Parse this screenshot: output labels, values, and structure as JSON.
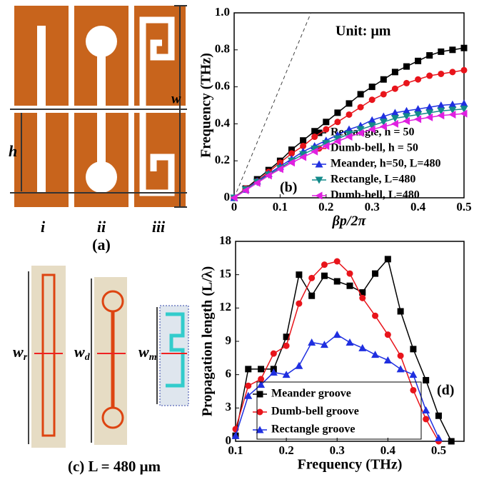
{
  "chart_data": [
    {
      "type": "line",
      "x_label": "βp/2π",
      "y_label": "Frequency (THz)",
      "annotations": [
        "Unit: μm",
        "(b)"
      ],
      "x": [
        0,
        0.025,
        0.05,
        0.075,
        0.1,
        0.125,
        0.15,
        0.175,
        0.2,
        0.225,
        0.25,
        0.275,
        0.3,
        0.325,
        0.35,
        0.375,
        0.4,
        0.425,
        0.45,
        0.475,
        0.5
      ],
      "series": [
        {
          "name": "Rectangle, h = 50",
          "color": "#000000",
          "marker": "square",
          "values": [
            0,
            0.05,
            0.1,
            0.15,
            0.2,
            0.26,
            0.31,
            0.36,
            0.41,
            0.46,
            0.51,
            0.56,
            0.6,
            0.64,
            0.68,
            0.71,
            0.74,
            0.77,
            0.79,
            0.8,
            0.81
          ]
        },
        {
          "name": "Dumb-bell, h = 50",
          "color": "#e8141b",
          "marker": "circle",
          "values": [
            0,
            0.05,
            0.09,
            0.14,
            0.19,
            0.24,
            0.28,
            0.33,
            0.37,
            0.41,
            0.45,
            0.49,
            0.53,
            0.56,
            0.59,
            0.62,
            0.64,
            0.66,
            0.67,
            0.68,
            0.69
          ]
        },
        {
          "name": "Meander, h=50, L=480",
          "color": "#1f2fe0",
          "marker": "triangle-up",
          "values": [
            0,
            0.045,
            0.09,
            0.13,
            0.17,
            0.21,
            0.25,
            0.28,
            0.31,
            0.34,
            0.37,
            0.39,
            0.42,
            0.44,
            0.46,
            0.47,
            0.48,
            0.49,
            0.5,
            0.505,
            0.51
          ]
        },
        {
          "name": "Rectangle, L=480",
          "color": "#138a8a",
          "marker": "triangle-down",
          "values": [
            0,
            0.045,
            0.085,
            0.125,
            0.16,
            0.2,
            0.235,
            0.265,
            0.295,
            0.32,
            0.345,
            0.37,
            0.39,
            0.41,
            0.43,
            0.44,
            0.45,
            0.46,
            0.47,
            0.475,
            0.48
          ]
        },
        {
          "name": "Dumb-bell, L=480",
          "color": "#e020e0",
          "marker": "triangle-left",
          "values": [
            0,
            0.04,
            0.08,
            0.12,
            0.155,
            0.19,
            0.22,
            0.25,
            0.28,
            0.305,
            0.33,
            0.35,
            0.37,
            0.385,
            0.4,
            0.415,
            0.425,
            0.435,
            0.445,
            0.45,
            0.455
          ]
        }
      ],
      "light_line": {
        "x": [
          0,
          0.167
        ],
        "y": [
          0,
          1
        ]
      },
      "xlim": [
        0,
        0.5
      ],
      "xticks": [
        0,
        0.1,
        0.2,
        0.3,
        0.4,
        0.5
      ],
      "ylim": [
        0,
        1
      ],
      "yticks": [
        0,
        0.2,
        0.4,
        0.6,
        0.8,
        {
          "value": 1,
          "label": "1.0"
        }
      ]
    },
    {
      "type": "line",
      "x_label": "Frequency (THz)",
      "y_label": "Propagation length (L/λ)",
      "annotations": [
        "(d)"
      ],
      "series": [
        {
          "name": "Meander groove",
          "color": "#000000",
          "marker": "square",
          "x": [
            0.1,
            0.125,
            0.15,
            0.175,
            0.2,
            0.225,
            0.25,
            0.275,
            0.3,
            0.325,
            0.35,
            0.375,
            0.4,
            0.425,
            0.45,
            0.475,
            0.5,
            0.525
          ],
          "values": [
            0.5,
            6.5,
            6.5,
            6.5,
            9.4,
            15,
            13.1,
            14.9,
            14.4,
            14,
            13.4,
            15.1,
            16.4,
            11.7,
            8.3,
            5.5,
            2.3,
            0
          ]
        },
        {
          "name": "Dumb-bell groove",
          "color": "#e8141b",
          "marker": "circle",
          "x": [
            0.1,
            0.125,
            0.15,
            0.175,
            0.2,
            0.225,
            0.25,
            0.275,
            0.3,
            0.325,
            0.35,
            0.375,
            0.4,
            0.425,
            0.45,
            0.475,
            0.5
          ],
          "values": [
            1.1,
            5,
            5.6,
            7.9,
            8.6,
            12.4,
            14.7,
            15.9,
            16.2,
            15.1,
            12.9,
            11.3,
            9.6,
            7.7,
            4.6,
            2,
            0
          ]
        },
        {
          "name": "Rectangle groove",
          "color": "#1f2fe0",
          "marker": "triangle-up",
          "x": [
            0.1,
            0.125,
            0.15,
            0.175,
            0.2,
            0.225,
            0.25,
            0.275,
            0.3,
            0.325,
            0.35,
            0.375,
            0.4,
            0.425,
            0.45,
            0.475,
            0.5
          ],
          "values": [
            0.5,
            4.1,
            5.1,
            6.2,
            6,
            6.8,
            8.9,
            8.7,
            9.6,
            8.9,
            8.4,
            7.8,
            7.3,
            6.5,
            6,
            2.8,
            0.3
          ]
        }
      ],
      "xlim": [
        0.1,
        0.55
      ],
      "xticks": [
        0.1,
        0.2,
        0.3,
        0.4,
        0.5
      ],
      "ylim": [
        0,
        18
      ],
      "yticks": [
        0,
        3,
        6,
        9,
        12,
        15,
        18
      ]
    }
  ],
  "panel_a": {
    "width_label": "w",
    "height_label": "h",
    "columns": [
      "i",
      "ii",
      "iii"
    ],
    "caption": "(a)"
  },
  "panel_c": {
    "labels": [
      {
        "symbol": "w",
        "subscript": "r"
      },
      {
        "symbol": "w",
        "subscript": "d"
      },
      {
        "symbol": "w",
        "subscript": "m"
      }
    ],
    "caption": "(c) L = 480 μm"
  }
}
